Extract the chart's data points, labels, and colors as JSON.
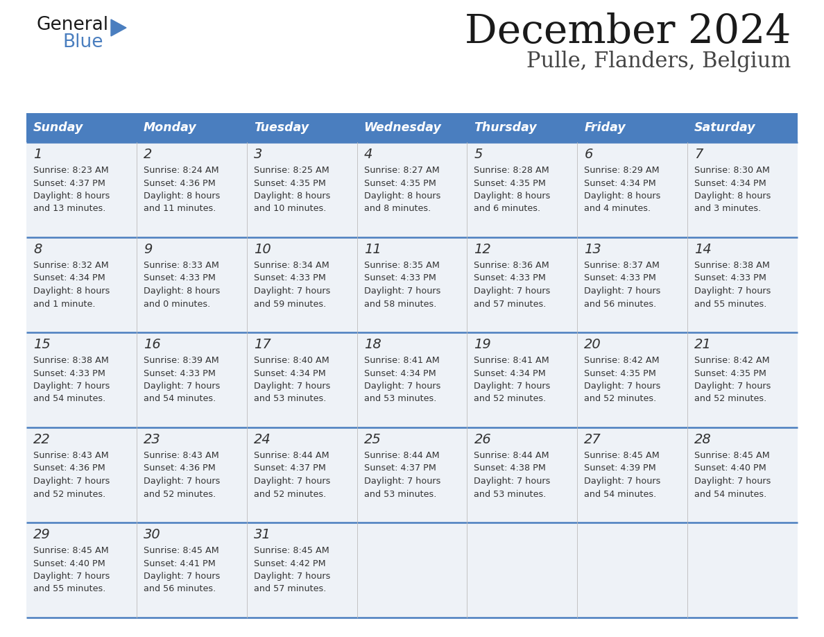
{
  "title": "December 2024",
  "subtitle": "Pulle, Flanders, Belgium",
  "header_color": "#4a7ebf",
  "header_text_color": "#ffffff",
  "cell_bg_color": "#eef2f7",
  "border_color": "#4a7ebf",
  "text_color": "#333333",
  "days_of_week": [
    "Sunday",
    "Monday",
    "Tuesday",
    "Wednesday",
    "Thursday",
    "Friday",
    "Saturday"
  ],
  "weeks": [
    [
      {
        "day": 1,
        "sunrise": "8:23 AM",
        "sunset": "4:37 PM",
        "daylight": "8 hours\nand 13 minutes."
      },
      {
        "day": 2,
        "sunrise": "8:24 AM",
        "sunset": "4:36 PM",
        "daylight": "8 hours\nand 11 minutes."
      },
      {
        "day": 3,
        "sunrise": "8:25 AM",
        "sunset": "4:35 PM",
        "daylight": "8 hours\nand 10 minutes."
      },
      {
        "day": 4,
        "sunrise": "8:27 AM",
        "sunset": "4:35 PM",
        "daylight": "8 hours\nand 8 minutes."
      },
      {
        "day": 5,
        "sunrise": "8:28 AM",
        "sunset": "4:35 PM",
        "daylight": "8 hours\nand 6 minutes."
      },
      {
        "day": 6,
        "sunrise": "8:29 AM",
        "sunset": "4:34 PM",
        "daylight": "8 hours\nand 4 minutes."
      },
      {
        "day": 7,
        "sunrise": "8:30 AM",
        "sunset": "4:34 PM",
        "daylight": "8 hours\nand 3 minutes."
      }
    ],
    [
      {
        "day": 8,
        "sunrise": "8:32 AM",
        "sunset": "4:34 PM",
        "daylight": "8 hours\nand 1 minute."
      },
      {
        "day": 9,
        "sunrise": "8:33 AM",
        "sunset": "4:33 PM",
        "daylight": "8 hours\nand 0 minutes."
      },
      {
        "day": 10,
        "sunrise": "8:34 AM",
        "sunset": "4:33 PM",
        "daylight": "7 hours\nand 59 minutes."
      },
      {
        "day": 11,
        "sunrise": "8:35 AM",
        "sunset": "4:33 PM",
        "daylight": "7 hours\nand 58 minutes."
      },
      {
        "day": 12,
        "sunrise": "8:36 AM",
        "sunset": "4:33 PM",
        "daylight": "7 hours\nand 57 minutes."
      },
      {
        "day": 13,
        "sunrise": "8:37 AM",
        "sunset": "4:33 PM",
        "daylight": "7 hours\nand 56 minutes."
      },
      {
        "day": 14,
        "sunrise": "8:38 AM",
        "sunset": "4:33 PM",
        "daylight": "7 hours\nand 55 minutes."
      }
    ],
    [
      {
        "day": 15,
        "sunrise": "8:38 AM",
        "sunset": "4:33 PM",
        "daylight": "7 hours\nand 54 minutes."
      },
      {
        "day": 16,
        "sunrise": "8:39 AM",
        "sunset": "4:33 PM",
        "daylight": "7 hours\nand 54 minutes."
      },
      {
        "day": 17,
        "sunrise": "8:40 AM",
        "sunset": "4:34 PM",
        "daylight": "7 hours\nand 53 minutes."
      },
      {
        "day": 18,
        "sunrise": "8:41 AM",
        "sunset": "4:34 PM",
        "daylight": "7 hours\nand 53 minutes."
      },
      {
        "day": 19,
        "sunrise": "8:41 AM",
        "sunset": "4:34 PM",
        "daylight": "7 hours\nand 52 minutes."
      },
      {
        "day": 20,
        "sunrise": "8:42 AM",
        "sunset": "4:35 PM",
        "daylight": "7 hours\nand 52 minutes."
      },
      {
        "day": 21,
        "sunrise": "8:42 AM",
        "sunset": "4:35 PM",
        "daylight": "7 hours\nand 52 minutes."
      }
    ],
    [
      {
        "day": 22,
        "sunrise": "8:43 AM",
        "sunset": "4:36 PM",
        "daylight": "7 hours\nand 52 minutes."
      },
      {
        "day": 23,
        "sunrise": "8:43 AM",
        "sunset": "4:36 PM",
        "daylight": "7 hours\nand 52 minutes."
      },
      {
        "day": 24,
        "sunrise": "8:44 AM",
        "sunset": "4:37 PM",
        "daylight": "7 hours\nand 52 minutes."
      },
      {
        "day": 25,
        "sunrise": "8:44 AM",
        "sunset": "4:37 PM",
        "daylight": "7 hours\nand 53 minutes."
      },
      {
        "day": 26,
        "sunrise": "8:44 AM",
        "sunset": "4:38 PM",
        "daylight": "7 hours\nand 53 minutes."
      },
      {
        "day": 27,
        "sunrise": "8:45 AM",
        "sunset": "4:39 PM",
        "daylight": "7 hours\nand 54 minutes."
      },
      {
        "day": 28,
        "sunrise": "8:45 AM",
        "sunset": "4:40 PM",
        "daylight": "7 hours\nand 54 minutes."
      }
    ],
    [
      {
        "day": 29,
        "sunrise": "8:45 AM",
        "sunset": "4:40 PM",
        "daylight": "7 hours\nand 55 minutes."
      },
      {
        "day": 30,
        "sunrise": "8:45 AM",
        "sunset": "4:41 PM",
        "daylight": "7 hours\nand 56 minutes."
      },
      {
        "day": 31,
        "sunrise": "8:45 AM",
        "sunset": "4:42 PM",
        "daylight": "7 hours\nand 57 minutes."
      },
      null,
      null,
      null,
      null
    ]
  ]
}
